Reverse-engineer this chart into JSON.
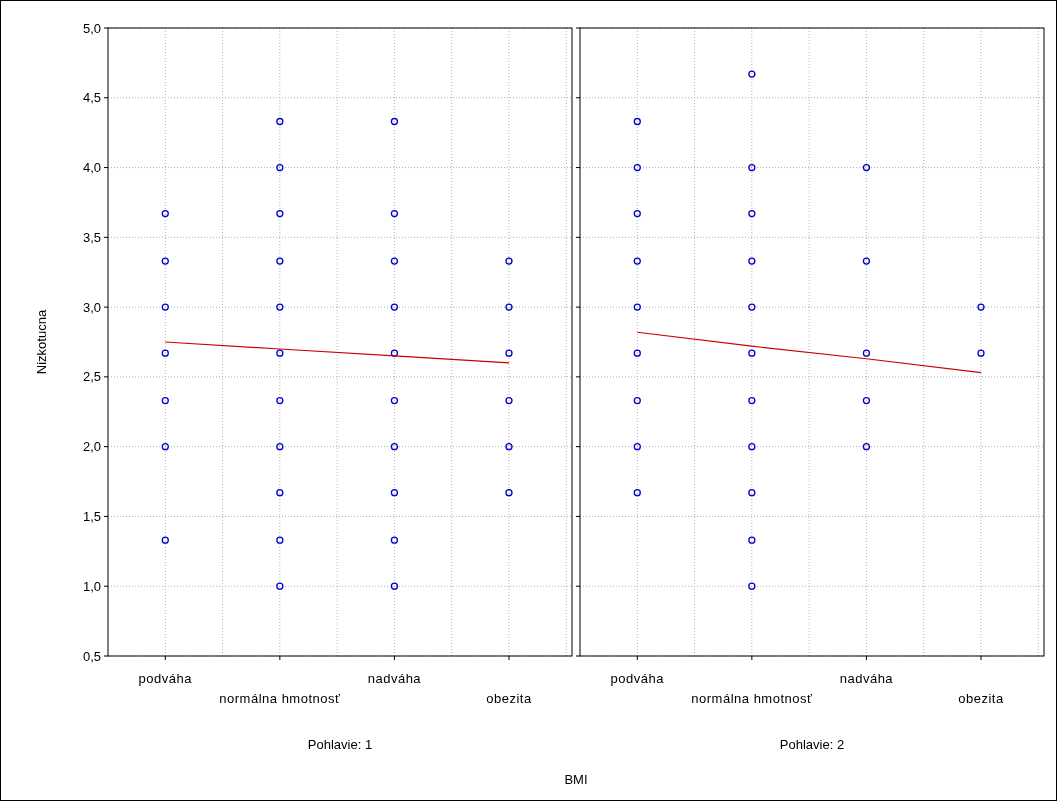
{
  "chart_data": [
    {
      "type": "scatter",
      "ylabel": "Nizkotucna",
      "xlabel": "Pohlavie: 1",
      "annotations": [
        "BMI"
      ],
      "grid": true,
      "categories": [
        "podváha",
        "normálna hmotnosť",
        "nadváha",
        "obezita"
      ],
      "ylim": [
        0.5,
        5
      ],
      "yticks": [
        {
          "value": 0.5,
          "label": "0,5"
        },
        {
          "value": 1,
          "label": "1,0"
        },
        {
          "value": 1.5,
          "label": "1,5"
        },
        {
          "value": 2,
          "label": "2,0"
        },
        {
          "value": 2.5,
          "label": "2,5"
        },
        {
          "value": 3,
          "label": "3,0"
        },
        {
          "value": 3.5,
          "label": "3,5"
        },
        {
          "value": 4,
          "label": "4,0"
        },
        {
          "value": 4.5,
          "label": "4,5"
        },
        {
          "value": 5,
          "label": "5,0"
        }
      ],
      "series": [
        {
          "color": "#0000cc",
          "marker": "circle",
          "x": [
            "podváha",
            "podváha",
            "podváha",
            "podváha",
            "podváha",
            "podváha",
            "podváha",
            "normálna hmotnosť",
            "normálna hmotnosť",
            "normálna hmotnosť",
            "normálna hmotnosť",
            "normálna hmotnosť",
            "normálna hmotnosť",
            "normálna hmotnosť",
            "normálna hmotnosť",
            "normálna hmotnosť",
            "normálna hmotnosť",
            "normálna hmotnosť",
            "nadváha",
            "nadváha",
            "nadváha",
            "nadváha",
            "nadváha",
            "nadváha",
            "nadváha",
            "nadváha",
            "nadváha",
            "nadváha",
            "obezita",
            "obezita",
            "obezita",
            "obezita",
            "obezita",
            "obezita"
          ],
          "values": [
            3.67,
            3.33,
            3.0,
            2.67,
            2.33,
            2.0,
            1.33,
            4.33,
            4.0,
            3.67,
            3.33,
            3.0,
            2.67,
            2.33,
            2.0,
            1.67,
            1.33,
            1.0,
            4.33,
            3.67,
            3.33,
            3.0,
            2.67,
            2.33,
            2.0,
            1.67,
            1.33,
            1.0,
            3.33,
            3.0,
            2.67,
            2.33,
            2.0,
            1.67
          ]
        },
        {
          "type": "line",
          "color": "#cc0000",
          "x": [
            "podváha",
            "normálna hmotnosť",
            "nadváha",
            "obezita"
          ],
          "values": [
            2.75,
            2.7,
            2.65,
            2.6
          ]
        }
      ]
    },
    {
      "type": "scatter",
      "xlabel": "Pohlavie: 2",
      "grid": true,
      "tick_labels": "x",
      "categories": [
        "podváha",
        "normálna hmotnosť",
        "nadváha",
        "obezita"
      ],
      "ylim": [
        0.5,
        5
      ],
      "yticks": [
        0.5,
        1,
        1.5,
        2,
        2.5,
        3,
        3.5,
        4,
        4.5,
        5
      ],
      "series": [
        {
          "color": "#0000cc",
          "marker": "circle",
          "x": [
            "podváha",
            "podváha",
            "podváha",
            "podváha",
            "podváha",
            "podváha",
            "podváha",
            "podváha",
            "podváha",
            "normálna hmotnosť",
            "normálna hmotnosť",
            "normálna hmotnosť",
            "normálna hmotnosť",
            "normálna hmotnosť",
            "normálna hmotnosť",
            "normálna hmotnosť",
            "normálna hmotnosť",
            "normálna hmotnosť",
            "normálna hmotnosť",
            "normálna hmotnosť",
            "nadváha",
            "nadváha",
            "nadváha",
            "nadváha",
            "nadváha",
            "obezita",
            "obezita"
          ],
          "values": [
            4.33,
            4.0,
            3.67,
            3.33,
            3.0,
            2.67,
            2.33,
            2.0,
            1.67,
            4.67,
            4.0,
            3.67,
            3.33,
            3.0,
            2.67,
            2.33,
            2.0,
            1.67,
            1.33,
            1.0,
            4.0,
            3.33,
            2.67,
            2.33,
            2.0,
            3.0,
            2.67
          ]
        },
        {
          "type": "line",
          "color": "#cc0000",
          "x": [
            "podváha",
            "normálna hmotnosť",
            "nadváha",
            "obezita"
          ],
          "values": [
            2.82,
            2.72,
            2.63,
            2.53
          ]
        }
      ]
    }
  ]
}
